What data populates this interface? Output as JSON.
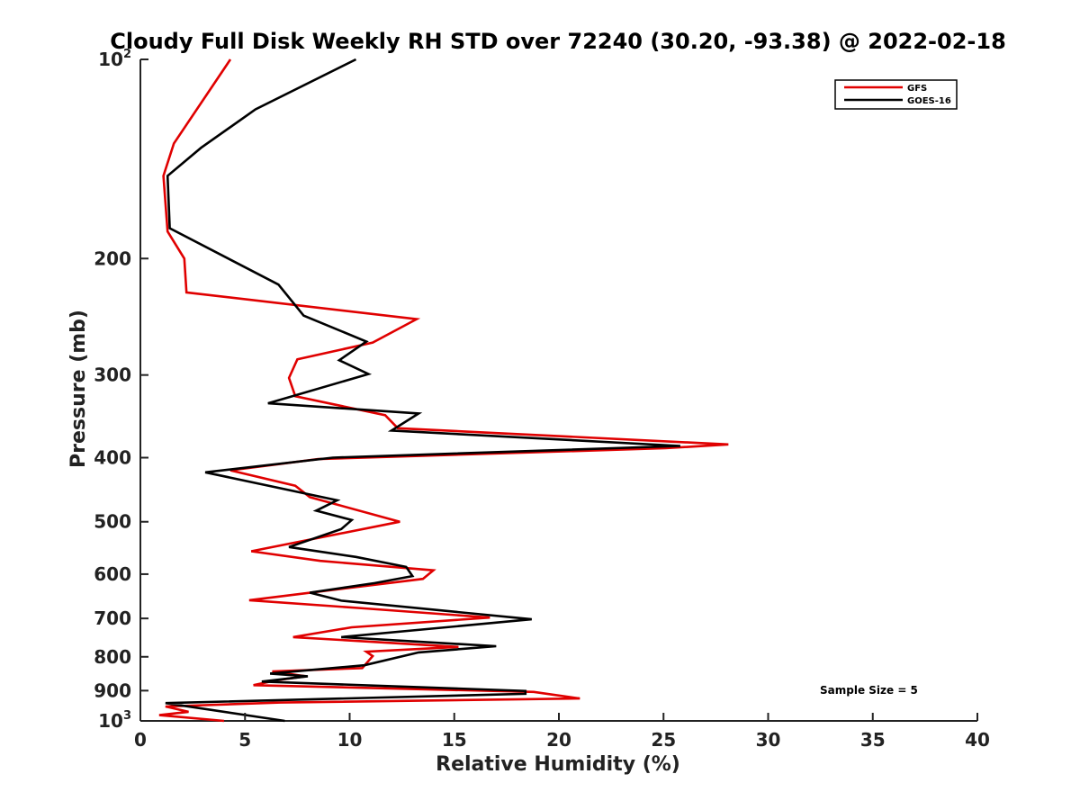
{
  "chart_data": {
    "type": "line",
    "title": "Cloudy Full Disk Weekly RH STD over 72240 (30.20, -93.38) @ 2022-02-18",
    "xlabel": "Relative Humidity (%)",
    "ylabel": "Pressure (mb)",
    "xlim": [
      0,
      40
    ],
    "ylim": [
      100,
      1000
    ],
    "yscale": "log",
    "y_reversed": true,
    "x_ticks": [
      0,
      5,
      10,
      15,
      20,
      25,
      30,
      35,
      40
    ],
    "x_tick_labels": [
      "0",
      "5",
      "10",
      "15",
      "20",
      "25",
      "30",
      "35",
      "40"
    ],
    "y_ticks": [
      100,
      200,
      300,
      400,
      500,
      600,
      700,
      800,
      900,
      1000
    ],
    "y_tick_labels": [
      {
        "base": "10",
        "sup": "2"
      },
      {
        "base": "200",
        "sup": ""
      },
      {
        "base": "300",
        "sup": ""
      },
      {
        "base": "400",
        "sup": ""
      },
      {
        "base": "500",
        "sup": ""
      },
      {
        "base": "600",
        "sup": ""
      },
      {
        "base": "700",
        "sup": ""
      },
      {
        "base": "800",
        "sup": ""
      },
      {
        "base": "900",
        "sup": ""
      },
      {
        "base": "10",
        "sup": "3"
      }
    ],
    "legend_position": "top-right",
    "annotation": "Sample Size = 5",
    "series": [
      {
        "name": "GFS",
        "color": "#e00000",
        "points": [
          [
            4.3,
            100
          ],
          [
            1.6,
            134
          ],
          [
            1.1,
            150
          ],
          [
            1.3,
            182
          ],
          [
            2.1,
            200
          ],
          [
            2.2,
            225
          ],
          [
            13.2,
            247
          ],
          [
            11.1,
            268
          ],
          [
            7.5,
            284
          ],
          [
            7.1,
            303
          ],
          [
            7.4,
            323
          ],
          [
            11.7,
            345
          ],
          [
            12.3,
            361
          ],
          [
            28.1,
            382
          ],
          [
            25.1,
            387
          ],
          [
            8.5,
            402
          ],
          [
            4.3,
            418
          ],
          [
            7.4,
            441
          ],
          [
            8.1,
            459
          ],
          [
            12.4,
            500
          ],
          [
            5.3,
            554
          ],
          [
            8.6,
            573
          ],
          [
            14.0,
            592
          ],
          [
            13.5,
            610
          ],
          [
            5.2,
            657
          ],
          [
            10.7,
            676
          ],
          [
            16.7,
            698
          ],
          [
            10.1,
            722
          ],
          [
            7.3,
            747
          ],
          [
            15.2,
            773
          ],
          [
            10.8,
            786
          ],
          [
            11.1,
            798
          ],
          [
            10.6,
            832
          ],
          [
            6.3,
            842
          ],
          [
            7.9,
            856
          ],
          [
            6.5,
            868
          ],
          [
            5.4,
            883
          ],
          [
            18.8,
            904
          ],
          [
            21.0,
            925
          ],
          [
            6.7,
            938
          ],
          [
            1.2,
            951
          ],
          [
            2.3,
            969
          ],
          [
            0.9,
            980
          ],
          [
            4.0,
            1000
          ]
        ]
      },
      {
        "name": "GOES-16",
        "color": "#000000",
        "points": [
          [
            10.3,
            100
          ],
          [
            5.5,
            119
          ],
          [
            2.9,
            136
          ],
          [
            1.3,
            150
          ],
          [
            1.4,
            180
          ],
          [
            6.6,
            219
          ],
          [
            7.8,
            244
          ],
          [
            10.8,
            267
          ],
          [
            9.5,
            285
          ],
          [
            10.9,
            299
          ],
          [
            6.1,
            331
          ],
          [
            13.3,
            343
          ],
          [
            12.0,
            364
          ],
          [
            25.8,
            384
          ],
          [
            9.2,
            400
          ],
          [
            3.1,
            421
          ],
          [
            9.4,
            464
          ],
          [
            8.4,
            481
          ],
          [
            10.1,
            497
          ],
          [
            9.6,
            513
          ],
          [
            7.1,
            546
          ],
          [
            10.3,
            565
          ],
          [
            12.7,
            585
          ],
          [
            13.0,
            604
          ],
          [
            11.2,
            619
          ],
          [
            8.1,
            640
          ],
          [
            9.6,
            658
          ],
          [
            18.7,
            702
          ],
          [
            9.6,
            747
          ],
          [
            17.0,
            771
          ],
          [
            13.3,
            788
          ],
          [
            10.7,
            824
          ],
          [
            6.2,
            848
          ],
          [
            8.0,
            856
          ],
          [
            5.8,
            872
          ],
          [
            18.4,
            901
          ],
          [
            18.4,
            910
          ],
          [
            1.2,
            940
          ],
          [
            6.9,
            1000
          ]
        ]
      }
    ]
  }
}
